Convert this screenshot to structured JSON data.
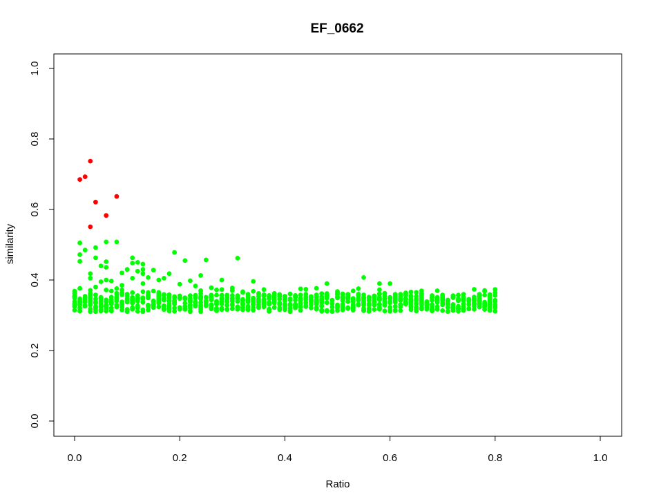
{
  "chart_data": {
    "type": "scatter",
    "title": "EF_0662",
    "xlabel": "Ratio",
    "ylabel": "similarity",
    "xlim": [
      0.0,
      1.0
    ],
    "ylim": [
      0.0,
      1.0
    ],
    "x_ticks": [
      "0.0",
      "0.2",
      "0.4",
      "0.6",
      "0.8",
      "1.0"
    ],
    "y_ticks": [
      "0.0",
      "0.2",
      "0.4",
      "0.6",
      "0.8",
      "1.0"
    ],
    "grid": false,
    "legend": "none",
    "colors": {
      "highlight": "#ff0000",
      "main": "#00ff00"
    },
    "series": [
      {
        "color": "#ff0000",
        "points": [
          [
            0.01,
            0.685
          ],
          [
            0.02,
            0.693
          ],
          [
            0.03,
            0.737
          ],
          [
            0.04,
            0.621
          ],
          [
            0.03,
            0.551
          ],
          [
            0.06,
            0.583
          ],
          [
            0.08,
            0.637
          ]
        ]
      },
      {
        "color": "#00ff00",
        "band": {
          "x_start": 0.0,
          "x_end": 0.8,
          "x_step": 0.01,
          "y_low": 0.31,
          "y_high": 0.36
        },
        "outliers": [
          [
            0.01,
            0.505
          ],
          [
            0.01,
            0.472
          ],
          [
            0.01,
            0.453
          ],
          [
            0.02,
            0.485
          ],
          [
            0.03,
            0.418
          ],
          [
            0.03,
            0.405
          ],
          [
            0.04,
            0.492
          ],
          [
            0.04,
            0.463
          ],
          [
            0.04,
            0.38
          ],
          [
            0.05,
            0.44
          ],
          [
            0.05,
            0.395
          ],
          [
            0.06,
            0.508
          ],
          [
            0.06,
            0.452
          ],
          [
            0.06,
            0.436
          ],
          [
            0.06,
            0.4
          ],
          [
            0.07,
            0.397
          ],
          [
            0.08,
            0.508
          ],
          [
            0.09,
            0.42
          ],
          [
            0.09,
            0.385
          ],
          [
            0.1,
            0.43
          ],
          [
            0.11,
            0.463
          ],
          [
            0.11,
            0.448
          ],
          [
            0.11,
            0.405
          ],
          [
            0.12,
            0.45
          ],
          [
            0.12,
            0.425
          ],
          [
            0.13,
            0.445
          ],
          [
            0.13,
            0.43
          ],
          [
            0.13,
            0.418
          ],
          [
            0.13,
            0.39
          ],
          [
            0.14,
            0.407
          ],
          [
            0.15,
            0.428
          ],
          [
            0.16,
            0.4
          ],
          [
            0.17,
            0.405
          ],
          [
            0.18,
            0.418
          ],
          [
            0.19,
            0.478
          ],
          [
            0.2,
            0.388
          ],
          [
            0.21,
            0.455
          ],
          [
            0.22,
            0.398
          ],
          [
            0.23,
            0.383
          ],
          [
            0.24,
            0.413
          ],
          [
            0.25,
            0.457
          ],
          [
            0.26,
            0.378
          ],
          [
            0.28,
            0.4
          ],
          [
            0.31,
            0.462
          ],
          [
            0.34,
            0.396
          ],
          [
            0.48,
            0.39
          ],
          [
            0.55,
            0.407
          ],
          [
            0.58,
            0.39
          ],
          [
            0.6,
            0.39
          ]
        ]
      }
    ]
  }
}
